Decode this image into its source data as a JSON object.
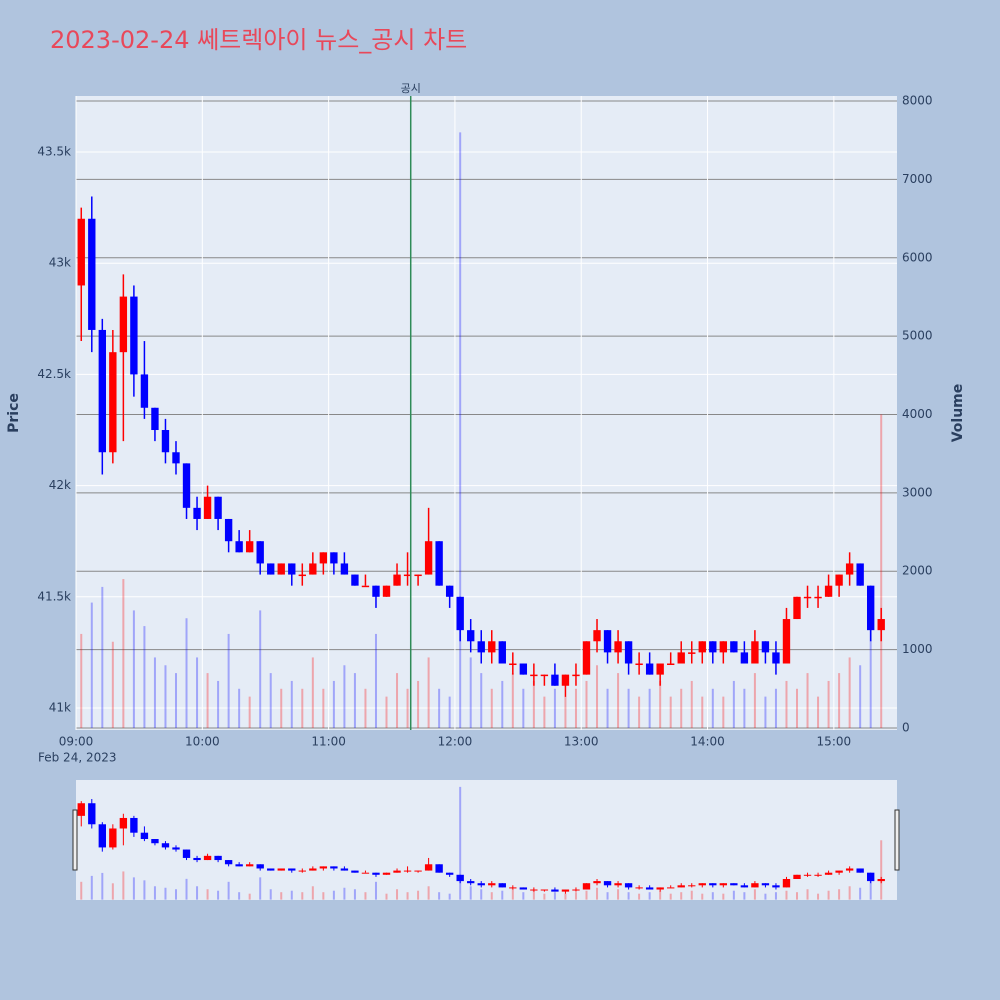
{
  "chart_data": {
    "type": "candlestick",
    "title": "2023-02-24 쎄트렉아이 뉴스_공시 차트",
    "ylabel": "Price",
    "y2label": "Volume",
    "x": [
      "09:00",
      "09:05",
      "09:10",
      "09:15",
      "09:20",
      "09:25",
      "09:30",
      "09:35",
      "09:40",
      "09:45",
      "09:50",
      "09:55",
      "10:00",
      "10:05",
      "10:10",
      "10:15",
      "10:20",
      "10:25",
      "10:30",
      "10:35",
      "10:40",
      "10:45",
      "10:50",
      "10:55",
      "11:00",
      "11:05",
      "11:10",
      "11:15",
      "11:20",
      "11:25",
      "11:30",
      "11:35",
      "11:40",
      "11:45",
      "11:50",
      "11:55",
      "12:00",
      "12:05",
      "12:10",
      "12:15",
      "12:20",
      "12:25",
      "12:30",
      "12:35",
      "12:40",
      "12:45",
      "12:50",
      "12:55",
      "13:00",
      "13:05",
      "13:10",
      "13:15",
      "13:20",
      "13:25",
      "13:30",
      "13:35",
      "13:40",
      "13:45",
      "13:50",
      "13:55",
      "14:00",
      "14:05",
      "14:10",
      "14:15",
      "14:20",
      "14:25",
      "14:30",
      "14:35",
      "14:40",
      "14:45",
      "14:50",
      "14:55",
      "15:00",
      "15:05",
      "15:10",
      "15:15",
      "15:20"
    ],
    "open": [
      42900,
      43200,
      42700,
      42150,
      42600,
      42850,
      42500,
      42350,
      42250,
      42150,
      42100,
      41900,
      41850,
      41950,
      41850,
      41750,
      41700,
      41750,
      41650,
      41600,
      41650,
      41600,
      41600,
      41650,
      41700,
      41650,
      41600,
      41550,
      41550,
      41500,
      41550,
      41600,
      41600,
      41600,
      41750,
      41550,
      41500,
      41350,
      41300,
      41250,
      41300,
      41200,
      41200,
      41150,
      41150,
      41150,
      41100,
      41150,
      41150,
      41300,
      41350,
      41250,
      41300,
      41200,
      41200,
      41150,
      41200,
      41200,
      41250,
      41250,
      41300,
      41250,
      41300,
      41250,
      41200,
      41300,
      41250,
      41200,
      41400,
      41500,
      41500,
      41500,
      41550,
      41600,
      41650,
      41550,
      41350
    ],
    "high": [
      43250,
      43300,
      42750,
      42700,
      42950,
      42900,
      42650,
      42350,
      42300,
      42200,
      42100,
      41950,
      42000,
      41950,
      41850,
      41800,
      41800,
      41750,
      41650,
      41650,
      41650,
      41650,
      41700,
      41700,
      41700,
      41700,
      41600,
      41600,
      41550,
      41550,
      41650,
      41700,
      41600,
      41900,
      41750,
      41550,
      41500,
      41400,
      41350,
      41350,
      41300,
      41250,
      41200,
      41200,
      41150,
      41200,
      41150,
      41200,
      41300,
      41400,
      41350,
      41350,
      41300,
      41250,
      41250,
      41200,
      41250,
      41300,
      41300,
      41300,
      41300,
      41300,
      41300,
      41300,
      41350,
      41300,
      41300,
      41450,
      41500,
      41550,
      41550,
      41600,
      41600,
      41700,
      41650,
      41550,
      41450
    ],
    "low": [
      42650,
      42600,
      42050,
      42100,
      42200,
      42400,
      42300,
      42200,
      42100,
      42050,
      41850,
      41800,
      41850,
      41800,
      41700,
      41700,
      41700,
      41600,
      41600,
      41600,
      41550,
      41550,
      41600,
      41600,
      41600,
      41600,
      41550,
      41550,
      41450,
      41500,
      41550,
      41550,
      41550,
      41600,
      41550,
      41450,
      41300,
      41250,
      41200,
      41200,
      41200,
      41150,
      41150,
      41100,
      41100,
      41100,
      41050,
      41100,
      41150,
      41250,
      41200,
      41200,
      41150,
      41150,
      41150,
      41100,
      41200,
      41200,
      41200,
      41200,
      41200,
      41200,
      41250,
      41200,
      41200,
      41200,
      41150,
      41200,
      41400,
      41450,
      41450,
      41500,
      41500,
      41550,
      41550,
      41300,
      41300
    ],
    "close": [
      43200,
      42700,
      42150,
      42600,
      42850,
      42500,
      42350,
      42250,
      42150,
      42100,
      41900,
      41850,
      41950,
      41850,
      41750,
      41700,
      41750,
      41650,
      41600,
      41650,
      41600,
      41600,
      41650,
      41700,
      41650,
      41600,
      41550,
      41550,
      41500,
      41550,
      41600,
      41600,
      41600,
      41750,
      41550,
      41500,
      41350,
      41300,
      41250,
      41300,
      41200,
      41200,
      41150,
      41150,
      41150,
      41100,
      41150,
      41150,
      41300,
      41350,
      41250,
      41300,
      41200,
      41200,
      41150,
      41200,
      41200,
      41250,
      41250,
      41300,
      41250,
      41300,
      41250,
      41200,
      41300,
      41250,
      41200,
      41400,
      41500,
      41500,
      41500,
      41550,
      41600,
      41650,
      41550,
      41350,
      41400
    ],
    "volume": [
      1200,
      1600,
      1800,
      1100,
      1900,
      1500,
      1300,
      900,
      800,
      700,
      1400,
      900,
      700,
      600,
      1200,
      500,
      400,
      1500,
      700,
      500,
      600,
      500,
      900,
      500,
      600,
      800,
      700,
      500,
      1200,
      400,
      700,
      500,
      600,
      900,
      500,
      400,
      7600,
      900,
      700,
      500,
      600,
      700,
      500,
      600,
      400,
      500,
      400,
      500,
      600,
      800,
      500,
      700,
      500,
      400,
      500,
      600,
      400,
      500,
      600,
      400,
      500,
      400,
      600,
      500,
      700,
      400,
      500,
      600,
      500,
      700,
      400,
      600,
      700,
      900,
      800,
      1500,
      4000
    ],
    "increasing_color": "#ff0000",
    "decreasing_color": "#0000ff",
    "xlim": [
      "09:00",
      "15:30"
    ],
    "xticks": [
      "09:00",
      "10:00",
      "11:00",
      "12:00",
      "13:00",
      "14:00",
      "15:00"
    ],
    "x_sublabel": "Feb 24, 2023",
    "ylim": [
      40901,
      43752
    ],
    "yticks": [
      {
        "value": 41000,
        "label": "41k"
      },
      {
        "value": 41500,
        "label": "41.5k"
      },
      {
        "value": 42000,
        "label": "42k"
      },
      {
        "value": 42500,
        "label": "42.5k"
      },
      {
        "value": 43000,
        "label": "43k"
      },
      {
        "value": 43500,
        "label": "43.5k"
      }
    ],
    "y2lim": [
      -26,
      8064
    ],
    "y2ticks": [
      0,
      1000,
      2000,
      3000,
      4000,
      5000,
      6000,
      7000,
      8000
    ],
    "annotations": [
      {
        "x": "11:39",
        "text": "공시",
        "color": "#2e8b57"
      }
    ],
    "grid": true,
    "rangeslider": true
  }
}
